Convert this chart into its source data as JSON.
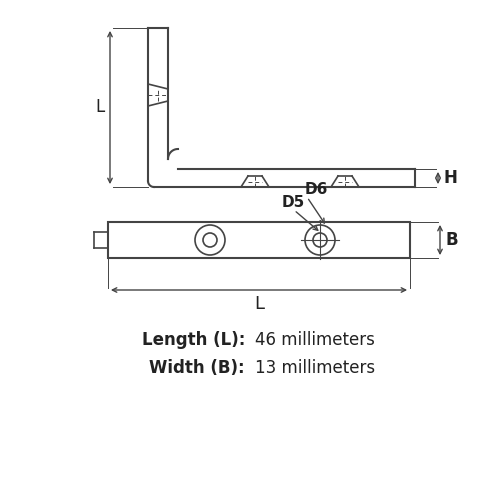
{
  "bg_color": "#ffffff",
  "line_color": "#444444",
  "dim_color": "#444444",
  "text_color": "#222222",
  "length_label": "Length (L):",
  "length_value": "46 millimeters",
  "width_label": "Width (B):",
  "width_value": "13 millimeters",
  "label_L": "L",
  "label_H": "H",
  "label_B": "B",
  "label_D5": "D5",
  "label_D6": "D6"
}
